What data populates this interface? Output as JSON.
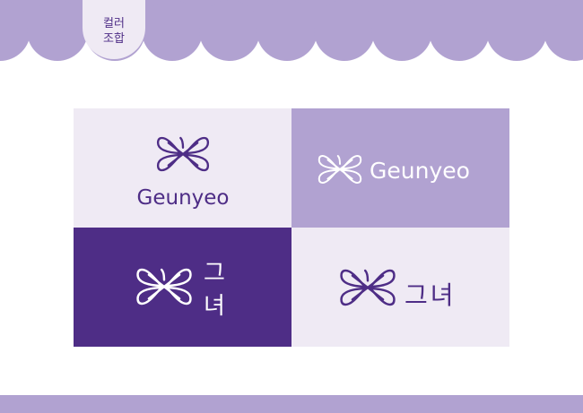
{
  "section": {
    "label_line1": "컬러",
    "label_line2": "조합"
  },
  "brand": {
    "wordmark_latin": "Geunyeo",
    "wordmark_korean_line1": "그",
    "wordmark_korean_line2": "녀",
    "wordmark_korean": "그녀"
  },
  "colors": {
    "lavender": "#b1a2d1",
    "deep_purple": "#4e2d86",
    "pale_lilac": "#efeaf4",
    "white": "#ffffff"
  },
  "combinations": [
    {
      "variant": "stacked-latin",
      "background": "pale_lilac",
      "foreground": "deep_purple"
    },
    {
      "variant": "horizontal-latin",
      "background": "lavender",
      "foreground": "white"
    },
    {
      "variant": "stacked-korean",
      "background": "deep_purple",
      "foreground": "white"
    },
    {
      "variant": "horizontal-korean",
      "background": "pale_lilac",
      "foreground": "deep_purple"
    }
  ]
}
